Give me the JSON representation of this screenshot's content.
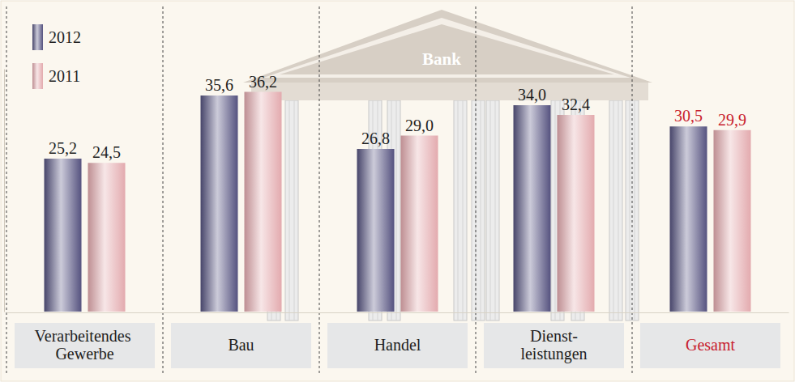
{
  "chart_data": {
    "type": "bar",
    "categories": [
      "Verarbeitendes Gewerbe",
      "Bau",
      "Handel",
      "Dienst-leistungen",
      "Gesamt"
    ],
    "series": [
      {
        "name": "2012",
        "color": "#55527f",
        "values": [
          25.2,
          35.6,
          26.8,
          34.0,
          30.5
        ],
        "value_labels": [
          "25,2",
          "35,6",
          "26,8",
          "34,0",
          "30,5"
        ]
      },
      {
        "name": "2011",
        "color": "#e3aaae",
        "values": [
          24.5,
          36.2,
          29.0,
          32.4,
          29.9
        ],
        "value_labels": [
          "24,5",
          "36,2",
          "29,0",
          "32,4",
          "29,9"
        ]
      }
    ],
    "ylim": [
      0,
      40
    ],
    "yticks": [],
    "tick_labels": "x",
    "data_labels": true,
    "legend": "top-left",
    "annotations": [
      "Bank"
    ]
  }
}
